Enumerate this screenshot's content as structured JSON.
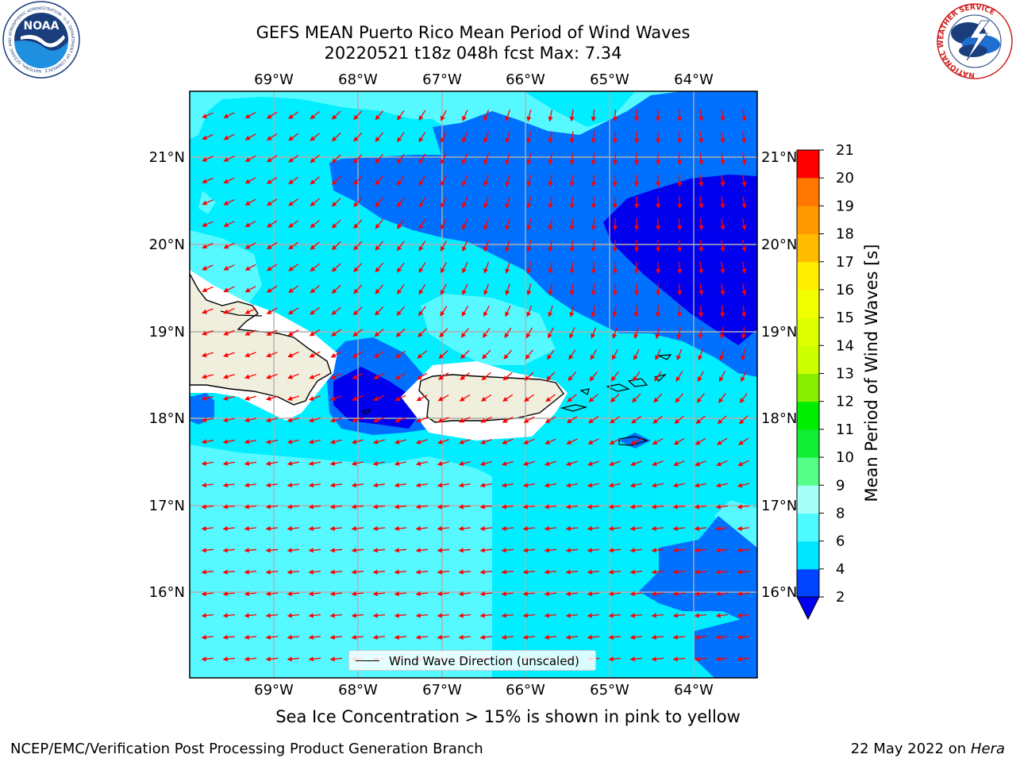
{
  "title_line1": "GEFS MEAN Puerto Rico Mean Period of Wind Waves",
  "title_line2": "20220521 t18z 048h fcst   Max: 7.34",
  "lon_labels": [
    "69°W",
    "68°W",
    "67°W",
    "66°W",
    "65°W",
    "64°W"
  ],
  "lat_labels": [
    "21°N",
    "20°N",
    "19°N",
    "18°N",
    "17°N",
    "16°N"
  ],
  "legend_label": "Wind Wave Direction (unscaled)",
  "colorbar": {
    "label": "Mean Period of Wind Waves [s]",
    "ticks": [
      "2",
      "4",
      "6",
      "8",
      "9",
      "10",
      "11",
      "12",
      "13",
      "14",
      "15",
      "16",
      "17",
      "18",
      "19",
      "20",
      "21"
    ],
    "colors": [
      "#0044ff",
      "#00e5ff",
      "#4dfaff",
      "#a8fff8",
      "#55ff88",
      "#11ee33",
      "#00ee00",
      "#88ee00",
      "#ccff00",
      "#ddff00",
      "#f2ff00",
      "#ffee00",
      "#ffbb00",
      "#ff9900",
      "#ff7700",
      "#ff4400",
      "#ff0000"
    ],
    "extend_color": "#0000ee"
  },
  "colors": {
    "cyan": "#00eeff",
    "light_cyan": "#55f9ff",
    "blue": "#0070ff",
    "dark_blue": "#0000ee",
    "land": "#f0eedd",
    "arrow": "#ff0000",
    "grid": "#b0b0b0"
  },
  "subtitle": "Sea Ice Concentration > 15% is shown in pink to yellow",
  "footer_left": "NCEP/EMC/Verification Post Processing Product Generation Branch",
  "footer_date": "22 May 2022 on",
  "footer_host": "Hera",
  "logos": {
    "noaa": "NOAA",
    "noaa_ring": "NATIONAL OCEANIC AND ATMOSPHERIC ADMINISTRATION · U.S. DEPARTMENT OF COMMERCE",
    "nws_ring": "NATIONAL WEATHER SERVICE"
  }
}
